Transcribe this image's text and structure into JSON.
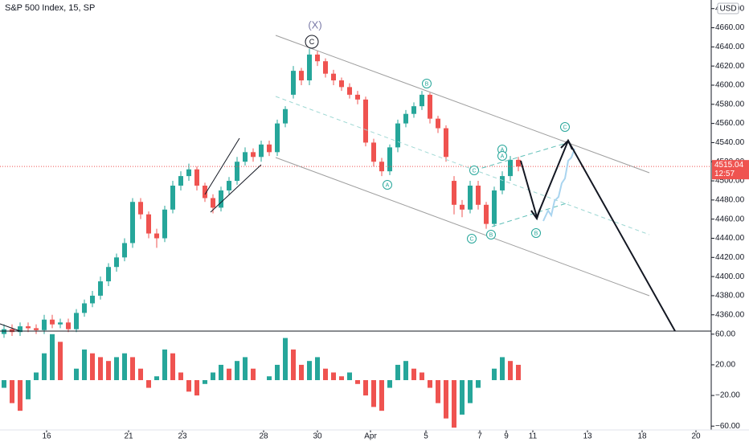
{
  "chart_data": [
    {
      "type": "candlestick",
      "title": "S&P 500 Index, 15, SP",
      "currency": "USD",
      "x": [
        0,
        1,
        2,
        3,
        4,
        5,
        6,
        7,
        8,
        9,
        10,
        11,
        12,
        13,
        14,
        15,
        16,
        17,
        18,
        19,
        20,
        21,
        22,
        23,
        24,
        25,
        26,
        27,
        28,
        29,
        30,
        31,
        32,
        33,
        34,
        35,
        36,
        37,
        38,
        39,
        40,
        41,
        42,
        43,
        44,
        45,
        46,
        47,
        48,
        49,
        50,
        51,
        52,
        53,
        54,
        55,
        56,
        57,
        58,
        59,
        60,
        61,
        62,
        63,
        64
      ],
      "open": [
        4340,
        4345,
        4342,
        4348,
        4346,
        4344,
        4355,
        4350,
        4352,
        4345,
        4362,
        4372,
        4380,
        4395,
        4410,
        4420,
        4435,
        4478,
        4465,
        4445,
        4440,
        4470,
        4495,
        4505,
        4512,
        4495,
        4482,
        4472,
        4490,
        4500,
        4520,
        4530,
        4525,
        4538,
        4530,
        4560,
        4590,
        4615,
        4605,
        4632,
        4625,
        4612,
        4605,
        4598,
        4590,
        4585,
        4540,
        4520,
        4510,
        4535,
        4560,
        4570,
        4578,
        4590,
        4565,
        4555,
        4500,
        4475,
        4470,
        4495,
        4475,
        4455,
        4490,
        4505,
        4522
      ],
      "high": [
        4350,
        4350,
        4352,
        4352,
        4350,
        4360,
        4360,
        4356,
        4356,
        4366,
        4376,
        4385,
        4400,
        4414,
        4424,
        4440,
        4482,
        4482,
        4468,
        4450,
        4474,
        4500,
        4510,
        4518,
        4515,
        4498,
        4486,
        4494,
        4504,
        4525,
        4535,
        4534,
        4542,
        4542,
        4564,
        4578,
        4620,
        4618,
        4638,
        4636,
        4628,
        4616,
        4608,
        4602,
        4594,
        4588,
        4544,
        4524,
        4538,
        4564,
        4574,
        4582,
        4594,
        4592,
        4568,
        4558,
        4505,
        4480,
        4500,
        4500,
        4478,
        4494,
        4510,
        4526,
        4525
      ],
      "low": [
        4336,
        4338,
        4338,
        4342,
        4340,
        4340,
        4346,
        4346,
        4342,
        4342,
        4358,
        4368,
        4376,
        4390,
        4405,
        4416,
        4430,
        4460,
        4440,
        4430,
        4436,
        4466,
        4490,
        4500,
        4490,
        4478,
        4466,
        4468,
        4486,
        4496,
        4516,
        4520,
        4520,
        4526,
        4526,
        4556,
        4586,
        4600,
        4600,
        4620,
        4608,
        4600,
        4594,
        4586,
        4580,
        4536,
        4515,
        4505,
        4506,
        4530,
        4556,
        4566,
        4574,
        4560,
        4550,
        4520,
        4465,
        4462,
        4466,
        4470,
        4450,
        4452,
        4486,
        4500,
        4510
      ],
      "close": [
        4345,
        4342,
        4348,
        4346,
        4344,
        4355,
        4350,
        4352,
        4345,
        4362,
        4372,
        4380,
        4395,
        4410,
        4420,
        4435,
        4478,
        4465,
        4445,
        4440,
        4470,
        4495,
        4505,
        4512,
        4495,
        4482,
        4472,
        4490,
        4500,
        4520,
        4530,
        4525,
        4538,
        4530,
        4560,
        4575,
        4615,
        4605,
        4632,
        4625,
        4612,
        4605,
        4598,
        4590,
        4585,
        4540,
        4520,
        4510,
        4535,
        4560,
        4570,
        4578,
        4590,
        4565,
        4555,
        4525,
        4475,
        4470,
        4495,
        4475,
        4455,
        4490,
        4505,
        4522,
        4515
      ],
      "up_color": "#26a69a",
      "down_color": "#ef5350",
      "xlim": [
        -0.5,
        88
      ],
      "xticks": [
        {
          "value": 5.3,
          "label": "16"
        },
        {
          "value": 15.5,
          "label": "21"
        },
        {
          "value": 22.2,
          "label": "23"
        },
        {
          "value": 32.3,
          "label": "28"
        },
        {
          "value": 39,
          "label": "30"
        },
        {
          "value": 45.6,
          "label": "Apr"
        },
        {
          "value": 52.5,
          "label": "5"
        },
        {
          "value": 59.2,
          "label": "7"
        },
        {
          "value": 62.5,
          "label": "9"
        },
        {
          "value": 65.8,
          "label": "11"
        },
        {
          "value": 72.6,
          "label": "13"
        },
        {
          "value": 79.4,
          "label": "18"
        },
        {
          "value": 86.1,
          "label": "20"
        }
      ],
      "ylim": [
        4343,
        4689
      ],
      "yticks": [
        {
          "value": 4360,
          "label": "4360.00"
        },
        {
          "value": 4380,
          "label": "4380.00"
        },
        {
          "value": 4400,
          "label": "4400.00"
        },
        {
          "value": 4420,
          "label": "4420.00"
        },
        {
          "value": 4440,
          "label": "4440.00"
        },
        {
          "value": 4460,
          "label": "4460.00"
        },
        {
          "value": 4480,
          "label": "4480.00"
        },
        {
          "value": 4500,
          "label": "4500.00"
        },
        {
          "value": 4520,
          "label": "4520.00"
        },
        {
          "value": 4540,
          "label": "4540.00"
        },
        {
          "value": 4560,
          "label": "4560.00"
        },
        {
          "value": 4580,
          "label": "4580.00"
        },
        {
          "value": 4600,
          "label": "4600.00"
        },
        {
          "value": 4620,
          "label": "4620.00"
        },
        {
          "value": 4640,
          "label": "4640.00"
        },
        {
          "value": 4660,
          "label": "4660.00"
        },
        {
          "value": 4680,
          "label": "4680.00"
        }
      ],
      "current_price": 4515.04,
      "countdown": "12:57",
      "annotations": [
        "(X)",
        "C",
        "B",
        "A",
        "C",
        "A",
        "C",
        "A",
        "C",
        "B",
        "B"
      ]
    },
    {
      "type": "histogram-oscillator",
      "x": [
        0,
        1,
        2,
        3,
        4,
        5,
        6,
        7,
        8,
        9,
        10,
        11,
        12,
        13,
        14,
        15,
        16,
        17,
        18,
        19,
        20,
        21,
        22,
        23,
        24,
        25,
        26,
        27,
        28,
        29,
        30,
        31,
        32,
        33,
        34,
        35,
        36,
        37,
        38,
        39,
        40,
        41,
        42,
        43,
        44,
        45,
        46,
        47,
        48,
        49,
        50,
        51,
        52,
        53,
        54,
        55,
        56,
        57,
        58,
        59,
        60,
        61,
        62,
        63,
        64
      ],
      "values": [
        -10,
        -30,
        -40,
        -25,
        10,
        35,
        60,
        50,
        0,
        15,
        40,
        35,
        30,
        25,
        30,
        35,
        30,
        15,
        -10,
        5,
        40,
        35,
        10,
        -15,
        -20,
        -5,
        10,
        20,
        15,
        25,
        30,
        15,
        0,
        5,
        20,
        55,
        40,
        20,
        25,
        30,
        15,
        10,
        5,
        10,
        -5,
        -20,
        -35,
        -40,
        -10,
        20,
        25,
        15,
        10,
        -10,
        -30,
        -50,
        -62,
        -45,
        -30,
        -10,
        0,
        15,
        30,
        25,
        20
      ],
      "up_color": "#26a69a",
      "down_color": "#ef5350",
      "ylim": [
        -65,
        64
      ],
      "yticks": [
        {
          "value": 60,
          "label": "60.00"
        },
        {
          "value": 20,
          "label": "20.00"
        },
        {
          "value": -20,
          "label": "−20.00"
        },
        {
          "value": -60,
          "label": "−60.00"
        }
      ]
    }
  ]
}
